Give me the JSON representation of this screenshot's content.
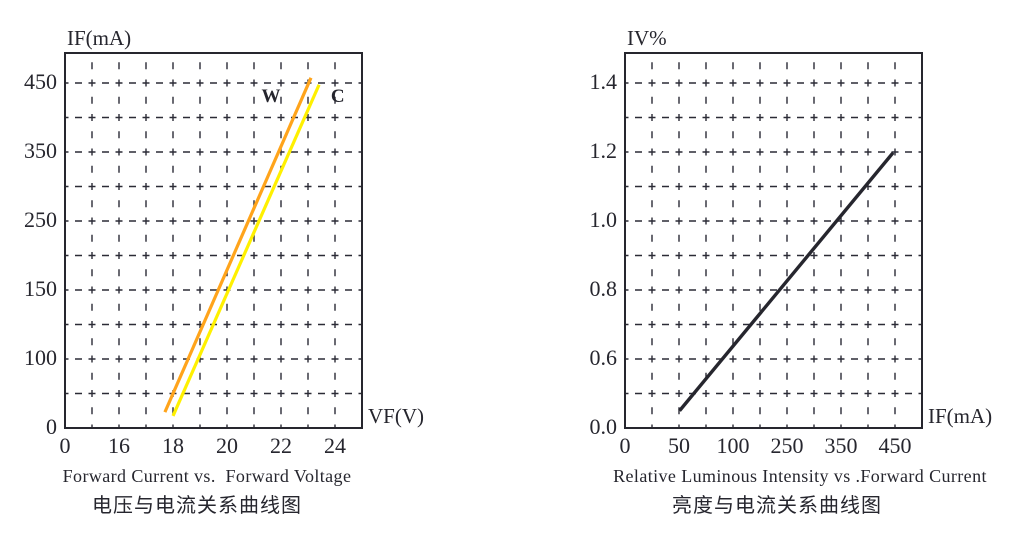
{
  "style": {
    "background": "#FFFFFF",
    "ink": "#26262E",
    "grid": "#2B2B36"
  },
  "chart_data": [
    {
      "type": "line",
      "id": "forward-current-vs-forward-voltage",
      "title": "Forward Current vs.  Forward Voltage",
      "title_cn": "电压与电流关系曲线图",
      "xlabel": "VF(V)",
      "ylabel": "IF(mA)",
      "x_tick_labels": [
        "0",
        "16",
        "18",
        "20",
        "22",
        "24"
      ],
      "y_tick_labels": [
        "0",
        "100",
        "150",
        "250",
        "350",
        "450"
      ],
      "axis_note": "tick labels printed at uniform spacing although increments are non-uniform",
      "grid": "dashed both directions",
      "legend_position": "labels beside curves, top of plot",
      "series": [
        {
          "name": "W",
          "color": "#FFA41B",
          "label_color": "#FFA018",
          "points": [
            [
              17.7,
              20
            ],
            [
              23.1,
              455
            ]
          ],
          "grid_from": [
            3.7,
            0.46
          ],
          "grid_to": [
            9.11,
            10.15
          ],
          "width": 3.2,
          "label_grid": [
            7.63,
            9.6
          ]
        },
        {
          "name": "C",
          "color": "#FFF000",
          "label_color": "#FFAF25",
          "points": [
            [
              18.0,
              16
            ],
            [
              23.4,
              450
            ]
          ],
          "grid_from": [
            4.0,
            0.35
          ],
          "grid_to": [
            9.41,
            9.95
          ],
          "width": 3.2,
          "label_grid": [
            10.1,
            9.6
          ]
        }
      ]
    },
    {
      "type": "line",
      "id": "luminous-intensity-vs-forward-current",
      "title": "Relative Luminous Intensity vs .Forward Current",
      "title_cn": "亮度与电流关系曲线图",
      "xlabel": "IF(mA)",
      "ylabel": "IV%",
      "x_tick_labels": [
        "0",
        "50",
        "100",
        "250",
        "350",
        "450"
      ],
      "y_tick_labels": [
        "0.0",
        "0.6",
        "0.8",
        "1.0",
        "1.2",
        "1.4"
      ],
      "axis_note": "tick labels printed at uniform spacing although increments are non-uniform",
      "grid": "dashed both directions",
      "legend_position": "none",
      "series": [
        {
          "name": "IV",
          "color": "#26262E",
          "points": [
            [
              50,
              0.15
            ],
            [
              450,
              1.2
            ]
          ],
          "grid_from": [
            2.02,
            0.5
          ],
          "grid_to": [
            9.93,
            7.98
          ],
          "width": 3.4
        }
      ]
    }
  ]
}
